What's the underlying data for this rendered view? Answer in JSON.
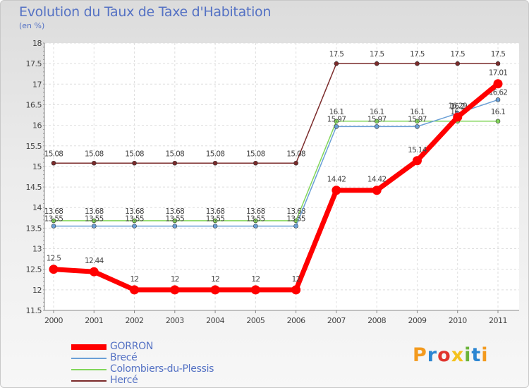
{
  "header": {
    "title": "Evolution du Taux de Taxe d'Habitation",
    "subtitle": "(en %)"
  },
  "chart_data": {
    "type": "line",
    "x": [
      "2000",
      "2001",
      "2002",
      "2003",
      "2004",
      "2005",
      "2006",
      "2007",
      "2008",
      "2009",
      "2010",
      "2011"
    ],
    "ylim": [
      11.5,
      18
    ],
    "yticks": [
      "11.5",
      "12",
      "12.5",
      "13",
      "13.5",
      "14",
      "14.5",
      "15",
      "15.5",
      "16",
      "16.5",
      "17",
      "17.5",
      "18"
    ],
    "grid": true,
    "series": [
      {
        "name": "Hercé",
        "color": "#7b2b2b",
        "values": [
          15.08,
          15.08,
          15.08,
          15.08,
          15.08,
          15.08,
          15.08,
          17.5,
          17.5,
          17.5,
          17.5,
          17.5
        ],
        "labels": [
          "15.08",
          "15.08",
          "15.08",
          "15.08",
          "15.08",
          "15.08",
          "15.08",
          "17.5",
          "17.5",
          "17.5",
          "17.5",
          "17.5"
        ]
      },
      {
        "name": "Colombiers-du-Plessis",
        "color": "#82d65a",
        "values": [
          13.68,
          13.68,
          13.68,
          13.68,
          13.68,
          13.68,
          13.68,
          16.1,
          16.1,
          16.1,
          16.1,
          16.1
        ],
        "labels": [
          "13.68",
          "13.68",
          "13.68",
          "13.68",
          "13.68",
          "13.68",
          "13.68",
          "16.1",
          "16.1",
          "16.1",
          "16.1",
          "16.1"
        ]
      },
      {
        "name": "Brecé",
        "color": "#6a9fd6",
        "values": [
          13.55,
          13.55,
          13.55,
          13.55,
          13.55,
          13.55,
          13.55,
          15.97,
          15.97,
          15.97,
          16.29,
          16.62
        ],
        "labels": [
          "13.55",
          "13.55",
          "13.55",
          "13.55",
          "13.55",
          "13.55",
          "13.55",
          "15.97",
          "15.97",
          "15.97",
          "16.29",
          "16.62"
        ]
      },
      {
        "name": "GORRON",
        "color": "#ff0000",
        "values": [
          12.5,
          12.44,
          12,
          12,
          12,
          12,
          12,
          14.42,
          14.42,
          15.14,
          16.2,
          17.01
        ],
        "labels": [
          "12.5",
          "12.44",
          "12",
          "12",
          "12",
          "12",
          "12",
          "14.42",
          "14.42",
          "15.14",
          "16.2",
          "17.01"
        ]
      }
    ]
  },
  "legend": {
    "items": [
      {
        "label": "GORRON",
        "color": "#ff0000"
      },
      {
        "label": "Brecé",
        "color": "#6a9fd6"
      },
      {
        "label": "Colombiers-du-Plessis",
        "color": "#82d65a"
      },
      {
        "label": "Hercé",
        "color": "#7b2b2b"
      }
    ]
  },
  "brand": {
    "name": "Proxiti",
    "letters": [
      "P",
      "r",
      "o",
      "x",
      "i",
      "t",
      "i"
    ]
  }
}
